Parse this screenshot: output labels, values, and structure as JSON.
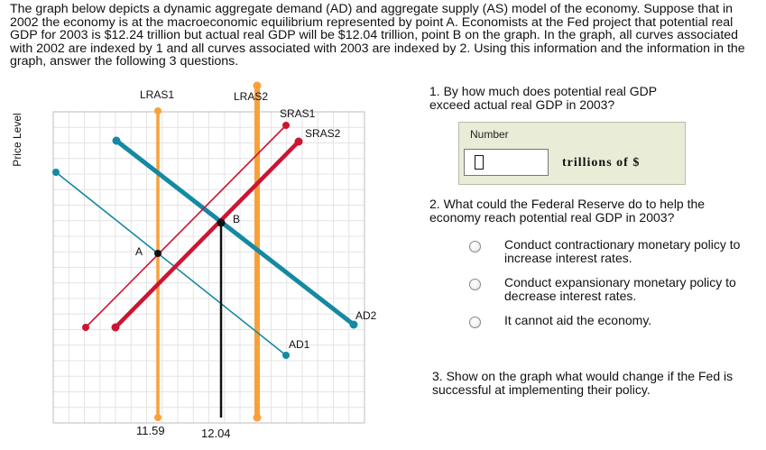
{
  "intro": "The graph below depicts a dynamic aggregate demand (AD) and aggregate supply (AS) model of the economy. Suppose that in 2002 the economy is at the macroeconomic equilibrium represented by point A. Economists at the Fed project that potential real GDP for 2003 is $12.24 trillion but actual real GDP will be $12.04 trillion, point B on the graph. In the graph, all curves associated with 2002 are indexed by 1 and all curves associated with 2003 are indexed by 2. Using this information and the information in the graph, answer the following 3 questions.",
  "graph": {
    "y_axis_label": "Price Level",
    "labels": {
      "lras1": "LRAS1",
      "lras2": "LRAS2",
      "sras1": "SRAS1",
      "sras2": "SRAS2",
      "ad1": "AD1",
      "ad2": "AD2",
      "point_a": "A",
      "point_b": "B",
      "x_tick_1": "11.59",
      "x_tick_2": "12.04"
    },
    "colors": {
      "lras": "#f8a13b",
      "sras": "#cc1533",
      "ad": "#1589a4",
      "grid": "#e4e4e4",
      "dot": "#111111"
    }
  },
  "q1": {
    "text": "1. By how much does potential real GDP exceed actual real GDP in 2003?",
    "number_label": "Number",
    "input_value": "",
    "unit": "trillions of $"
  },
  "q2": {
    "text": "2. What could the Federal Reserve do to help the economy reach potential real GDP in 2003?",
    "options": [
      "Conduct contractionary monetary policy to increase interest rates.",
      "Conduct expansionary monetary policy to decrease interest rates.",
      "It cannot aid the economy."
    ]
  },
  "q3": {
    "text": "3. Show on the graph what would change if the Fed is successful at implementing their policy."
  }
}
